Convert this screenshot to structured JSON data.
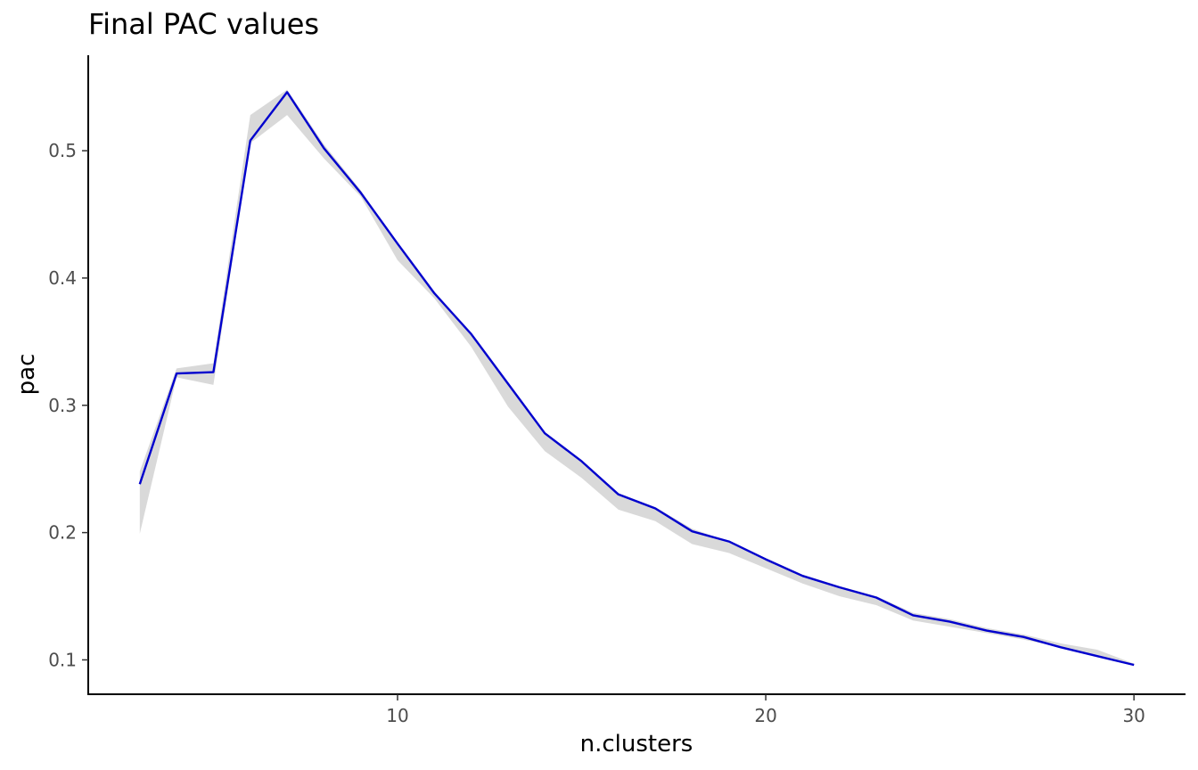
{
  "chart_data": {
    "type": "line",
    "title": "Final PAC values",
    "xlabel": "n.clusters",
    "ylabel": "pac",
    "xlim": [
      1.6,
      31.4
    ],
    "ylim": [
      0.073,
      0.575
    ],
    "x_ticks": [
      10,
      20,
      30
    ],
    "x_tick_labels": [
      "10",
      "20",
      "30"
    ],
    "y_ticks": [
      0.1,
      0.2,
      0.3,
      0.4,
      0.5
    ],
    "y_tick_labels": [
      "0.1",
      "0.2",
      "0.3",
      "0.4",
      "0.5"
    ],
    "grid": false,
    "legend": "none",
    "line_color": "#0000cd",
    "band_color": "#d9d9d9",
    "series": [
      {
        "x": [
          3,
          4,
          5,
          6,
          7,
          8,
          9,
          10,
          11,
          12,
          13,
          14,
          15,
          16,
          17,
          18,
          19,
          20,
          21,
          22,
          23,
          24,
          25,
          26,
          27,
          28,
          29,
          30
        ],
        "values": [
          0.238,
          0.325,
          0.326,
          0.508,
          0.546,
          0.502,
          0.467,
          0.427,
          0.388,
          0.356,
          0.317,
          0.278,
          0.256,
          0.23,
          0.219,
          0.201,
          0.193,
          0.179,
          0.166,
          0.157,
          0.149,
          0.135,
          0.13,
          0.123,
          0.118,
          0.11,
          0.103,
          0.096
        ],
        "lower": [
          0.199,
          0.322,
          0.316,
          0.506,
          0.528,
          0.494,
          0.464,
          0.414,
          0.384,
          0.346,
          0.299,
          0.264,
          0.243,
          0.218,
          0.209,
          0.191,
          0.184,
          0.172,
          0.16,
          0.15,
          0.143,
          0.131,
          0.126,
          0.121,
          0.116,
          0.11,
          0.103,
          0.096
        ],
        "upper": [
          0.248,
          0.329,
          0.333,
          0.528,
          0.548,
          0.505,
          0.469,
          0.427,
          0.389,
          0.356,
          0.317,
          0.279,
          0.257,
          0.231,
          0.22,
          0.203,
          0.193,
          0.18,
          0.167,
          0.158,
          0.15,
          0.137,
          0.132,
          0.125,
          0.12,
          0.113,
          0.108,
          0.097
        ]
      }
    ]
  }
}
